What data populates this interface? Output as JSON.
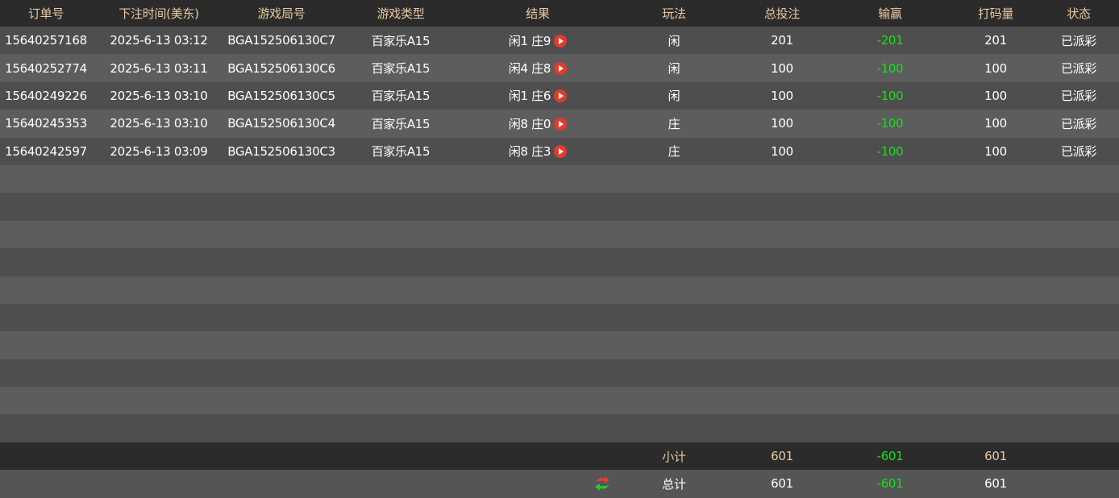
{
  "headers": [
    "订单号",
    "下注时间(美东)",
    "游戏局号",
    "游戏类型",
    "结果",
    "玩法",
    "总投注",
    "输赢",
    "打码量",
    "状态"
  ],
  "rows": [
    {
      "order": "15640257168",
      "time": "2025-6-13 03:12",
      "round": "BGA152506130C7",
      "game": "百家乐A15",
      "result": "闲1 庄9",
      "play": "闲",
      "bet": "201",
      "winloss": "-201",
      "turnover": "201",
      "status": "已派彩"
    },
    {
      "order": "15640252774",
      "time": "2025-6-13 03:11",
      "round": "BGA152506130C6",
      "game": "百家乐A15",
      "result": "闲4 庄8",
      "play": "闲",
      "bet": "100",
      "winloss": "-100",
      "turnover": "100",
      "status": "已派彩"
    },
    {
      "order": "15640249226",
      "time": "2025-6-13 03:10",
      "round": "BGA152506130C5",
      "game": "百家乐A15",
      "result": "闲1 庄6",
      "play": "闲",
      "bet": "100",
      "winloss": "-100",
      "turnover": "100",
      "status": "已派彩"
    },
    {
      "order": "15640245353",
      "time": "2025-6-13 03:10",
      "round": "BGA152506130C4",
      "game": "百家乐A15",
      "result": "闲8 庄0",
      "play": "庄",
      "bet": "100",
      "winloss": "-100",
      "turnover": "100",
      "status": "已派彩"
    },
    {
      "order": "15640242597",
      "time": "2025-6-13 03:09",
      "round": "BGA152506130C3",
      "game": "百家乐A15",
      "result": "闲8 庄3",
      "play": "庄",
      "bet": "100",
      "winloss": "-100",
      "turnover": "100",
      "status": "已派彩"
    }
  ],
  "subtotal": {
    "label": "小计",
    "bet": "601",
    "winloss": "-601",
    "turnover": "601"
  },
  "total": {
    "label": "总计",
    "bet": "601",
    "winloss": "-601",
    "turnover": "601",
    "icon": "refresh-icon"
  },
  "colors": {
    "header_text": "#e8c9a0",
    "negative": "#17e017",
    "play_button": "#e23b2e"
  }
}
